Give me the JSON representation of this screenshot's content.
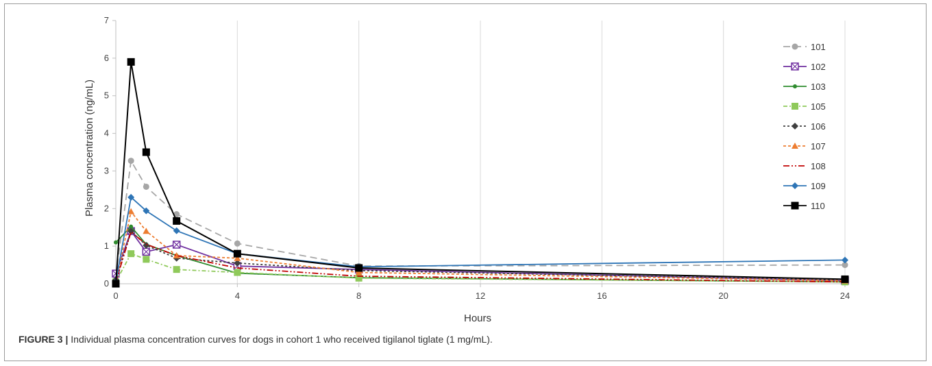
{
  "caption": {
    "label": "FIGURE 3 |",
    "text": "Individual plasma concentration curves for dogs in cohort 1 who received tigilanol tiglate (1 mg/mL)."
  },
  "chart_data": {
    "type": "line",
    "xlabel": "Hours",
    "ylabel": "Plasma concentration (ng/mL)",
    "xlim": [
      0,
      24
    ],
    "ylim": [
      0,
      7
    ],
    "xticks": [
      0,
      4,
      8,
      12,
      16,
      20,
      24
    ],
    "yticks": [
      0,
      1,
      2,
      3,
      4,
      5,
      6,
      7
    ],
    "grid": "vertical",
    "legend": "right",
    "series": [
      {
        "name": "101",
        "color": "#a6a6a6",
        "dash": "10,6",
        "marker": "circle",
        "points": [
          [
            0,
            0.2
          ],
          [
            0.5,
            3.27
          ],
          [
            1,
            2.58
          ],
          [
            2,
            1.85
          ],
          [
            4,
            1.07
          ],
          [
            8,
            0.47
          ],
          [
            24,
            0.5
          ]
        ]
      },
      {
        "name": "102",
        "color": "#7030a0",
        "dash": "",
        "marker": "xsquare",
        "points": [
          [
            0,
            0.27
          ],
          [
            0.5,
            1.4
          ],
          [
            1,
            0.85
          ],
          [
            2,
            1.04
          ],
          [
            4,
            0.47
          ],
          [
            8,
            0.38
          ],
          [
            24,
            0.08
          ]
        ]
      },
      {
        "name": "103",
        "color": "#2e8b2e",
        "dash": "",
        "marker": "dot",
        "points": [
          [
            0,
            1.1
          ],
          [
            0.5,
            1.52
          ],
          [
            1,
            1.05
          ],
          [
            2,
            0.75
          ],
          [
            4,
            0.28
          ],
          [
            8,
            0.16
          ],
          [
            24,
            0.05
          ]
        ]
      },
      {
        "name": "105",
        "color": "#8fc95a",
        "dash": "6,3,2,3",
        "marker": "square",
        "points": [
          [
            0,
            0.05
          ],
          [
            0.5,
            0.8
          ],
          [
            1,
            0.65
          ],
          [
            2,
            0.38
          ],
          [
            4,
            0.3
          ],
          [
            8,
            0.15
          ],
          [
            24,
            0.05
          ]
        ]
      },
      {
        "name": "106",
        "color": "#404040",
        "dash": "3,3",
        "marker": "diamond",
        "points": [
          [
            0,
            0.1
          ],
          [
            0.5,
            1.4
          ],
          [
            1,
            1.02
          ],
          [
            2,
            0.68
          ],
          [
            4,
            0.55
          ],
          [
            8,
            0.35
          ],
          [
            24,
            0.1
          ]
        ]
      },
      {
        "name": "107",
        "color": "#ed7d31",
        "dash": "4,3",
        "marker": "triangle",
        "points": [
          [
            0,
            0.02
          ],
          [
            0.5,
            1.92
          ],
          [
            1,
            1.4
          ],
          [
            2,
            0.75
          ],
          [
            4,
            0.68
          ],
          [
            8,
            0.3
          ],
          [
            24,
            0.08
          ]
        ]
      },
      {
        "name": "108",
        "color": "#c00000",
        "dash": "9,3,2,3,2,3",
        "marker": "none",
        "points": [
          [
            0,
            0.05
          ],
          [
            0.5,
            1.38
          ],
          [
            1,
            1.05
          ],
          [
            2,
            0.75
          ],
          [
            4,
            0.42
          ],
          [
            8,
            0.2
          ],
          [
            24,
            0.05
          ]
        ]
      },
      {
        "name": "109",
        "color": "#2e75b6",
        "dash": "",
        "marker": "diamond",
        "points": [
          [
            0,
            0.05
          ],
          [
            0.5,
            2.3
          ],
          [
            1,
            1.94
          ],
          [
            2,
            1.41
          ],
          [
            4,
            0.8
          ],
          [
            8,
            0.45
          ],
          [
            24,
            0.63
          ]
        ]
      },
      {
        "name": "110",
        "color": "#000000",
        "dash": "",
        "marker": "bigsquare",
        "points": [
          [
            0,
            0.0
          ],
          [
            0.5,
            5.9
          ],
          [
            1,
            3.5
          ],
          [
            2,
            1.67
          ],
          [
            4,
            0.8
          ],
          [
            8,
            0.42
          ],
          [
            24,
            0.12
          ]
        ]
      }
    ]
  }
}
